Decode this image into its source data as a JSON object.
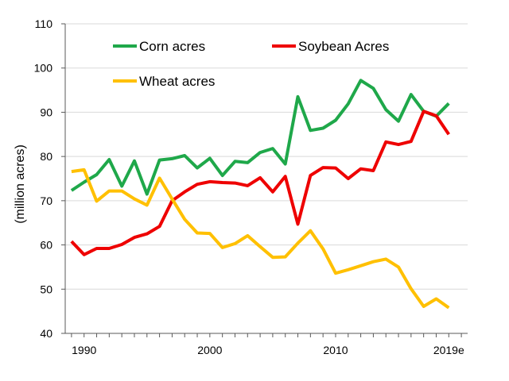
{
  "chart_data": {
    "type": "line",
    "title": "",
    "xlabel": "",
    "ylabel": "(million acres)",
    "ylim": [
      40,
      110
    ],
    "yticks": [
      40,
      50,
      60,
      70,
      80,
      90,
      100,
      110
    ],
    "xlim": [
      1988.5,
      2020.5
    ],
    "xtick_labels": [
      {
        "value": 1990,
        "label": "1990"
      },
      {
        "value": 2000,
        "label": "2000"
      },
      {
        "value": 2010,
        "label": "2010"
      },
      {
        "value": 2019,
        "label": "2019e"
      }
    ],
    "grid": "horizontal",
    "legend": "top-left",
    "x": [
      1989,
      1990,
      1991,
      1992,
      1993,
      1994,
      1995,
      1996,
      1997,
      1998,
      1999,
      2000,
      2001,
      2002,
      2003,
      2004,
      2005,
      2006,
      2007,
      2008,
      2009,
      2010,
      2011,
      2012,
      2013,
      2014,
      2015,
      2016,
      2017,
      2018,
      2019,
      2020
    ],
    "series": [
      {
        "name": "Corn acres",
        "color": "#1fa84a",
        "values": [
          72.3,
          74.2,
          75.9,
          79.3,
          73.3,
          79.0,
          71.5,
          79.2,
          79.5,
          80.2,
          77.4,
          79.6,
          75.7,
          78.9,
          78.6,
          80.9,
          81.8,
          78.3,
          93.5,
          85.9,
          86.4,
          88.2,
          91.9,
          97.2,
          95.4,
          90.6,
          88.0,
          94.0,
          90.2,
          89.1,
          92.0,
          null
        ]
      },
      {
        "name": "Soybean Acres",
        "color": "#ee0000",
        "values": [
          60.8,
          57.8,
          59.2,
          59.2,
          60.1,
          61.7,
          62.5,
          64.2,
          70.0,
          72.0,
          73.7,
          74.3,
          74.1,
          74.0,
          73.4,
          75.2,
          72.0,
          75.5,
          64.7,
          75.7,
          77.5,
          77.4,
          75.0,
          77.2,
          76.8,
          83.3,
          82.7,
          83.4,
          90.2,
          89.2,
          85.0,
          null
        ]
      },
      {
        "name": "Wheat acres",
        "color": "#ffc000",
        "values": [
          76.6,
          77.0,
          69.9,
          72.2,
          72.2,
          70.4,
          69.0,
          75.1,
          70.4,
          65.8,
          62.7,
          62.6,
          59.4,
          60.3,
          62.1,
          59.6,
          57.2,
          57.3,
          60.4,
          63.2,
          59.1,
          53.6,
          54.4,
          55.3,
          56.2,
          56.8,
          55.0,
          50.1,
          46.1,
          47.8,
          45.8,
          null
        ]
      }
    ]
  }
}
